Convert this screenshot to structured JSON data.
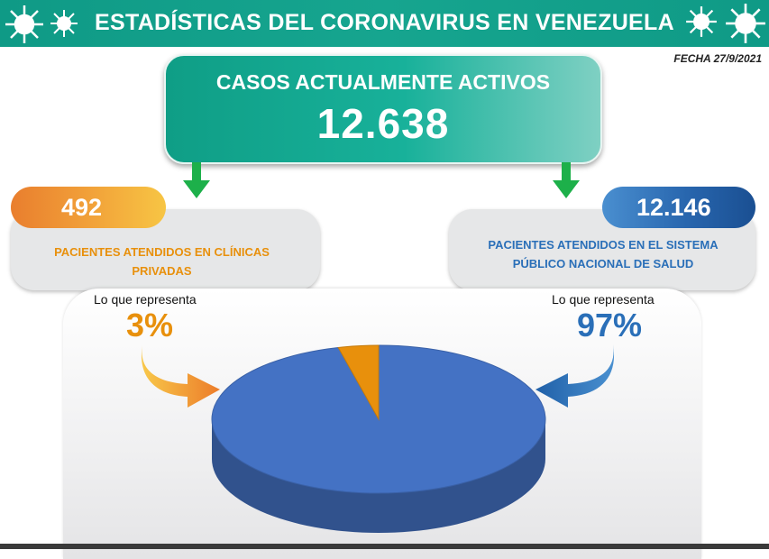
{
  "header": {
    "title": "ESTADÍSTICAS DEL CORONAVIRUS EN VENEZUELA"
  },
  "fecha": "FECHA 27/9/2021",
  "active_cases": {
    "title": "CASOS ACTUALMENTE ACTIVOS",
    "value": "12.638"
  },
  "private_clinics": {
    "value": "492",
    "label_line1": "PACIENTES ATENDIDOS EN CLÍNICAS",
    "label_line2": "PRIVADAS",
    "represent_label": "Lo que representa",
    "percent_label": "3%"
  },
  "public_system": {
    "value": "12.146",
    "label_line1": "PACIENTES ATENDIDOS EN EL SISTEMA",
    "label_line2": "PÚBLICO NACIONAL DE SALUD",
    "represent_label": "Lo que representa",
    "percent_label": "97%"
  },
  "colors": {
    "teal": "#0f9a86",
    "orange": "#e8900c",
    "blue": "#2a6fb8",
    "pie_blue": "#4472c4",
    "pie_orange": "#e8900c"
  },
  "chart_data": {
    "type": "pie",
    "title": "",
    "categories": [
      "PACIENTES ATENDIDOS EN CLÍNICAS PRIVADAS",
      "PACIENTES ATENDIDOS EN EL SISTEMA PÚBLICO NACIONAL DE SALUD"
    ],
    "values": [
      492,
      12146
    ],
    "percent_labels": [
      "3%",
      "97%"
    ],
    "colors": [
      "#e8900c",
      "#4472c4"
    ],
    "legend": false
  }
}
